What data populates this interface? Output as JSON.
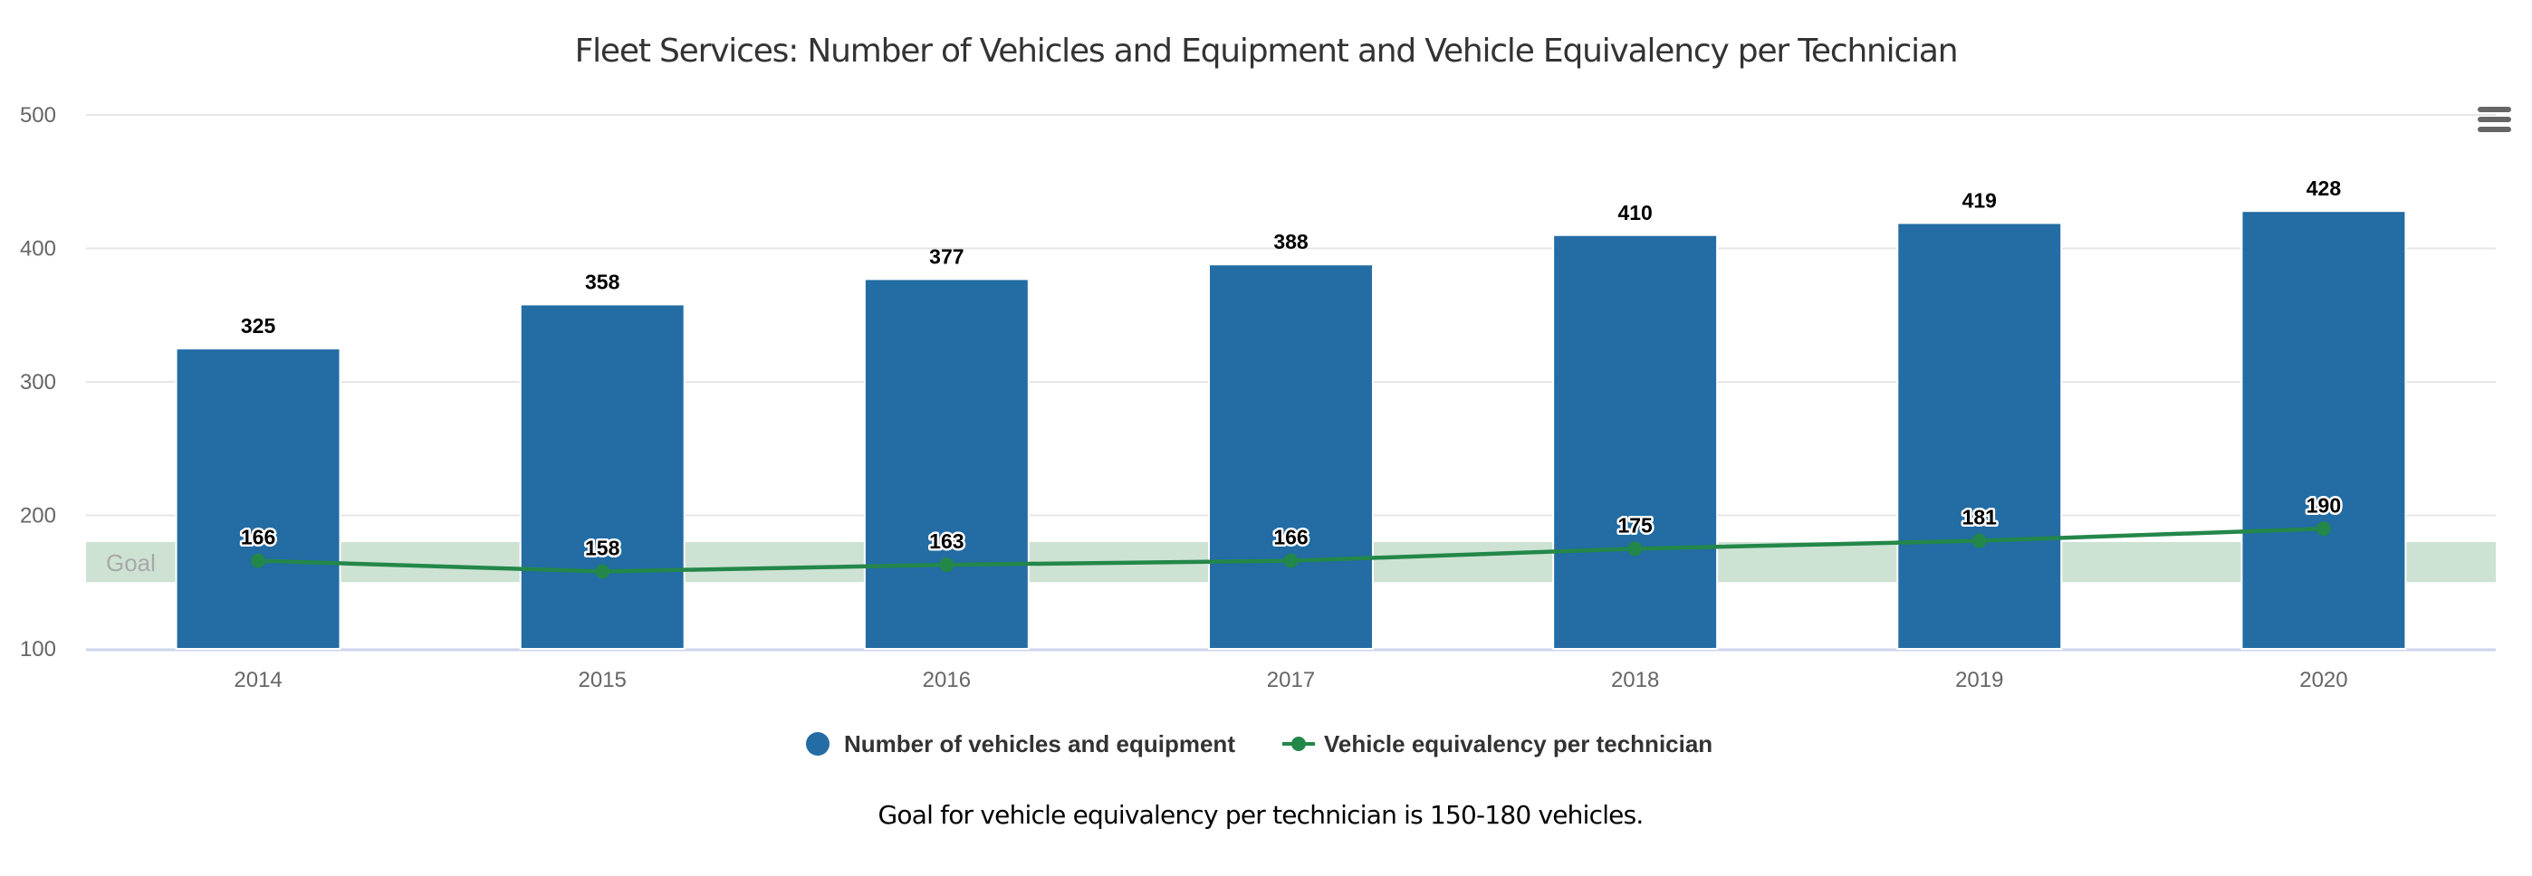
{
  "chart_data": {
    "type": "bar",
    "title": "Fleet Services: Number of Vehicles and Equipment and Vehicle Equivalency per Technician",
    "categories": [
      "2014",
      "2015",
      "2016",
      "2017",
      "2018",
      "2019",
      "2020"
    ],
    "series": [
      {
        "name": "Number of vehicles and equipment",
        "type": "bar",
        "color": "#236ca4",
        "values": [
          325,
          358,
          377,
          388,
          410,
          419,
          428
        ]
      },
      {
        "name": "Vehicle equivalency per technician",
        "type": "line",
        "color": "#23874a",
        "values": [
          166,
          158,
          163,
          166,
          175,
          181,
          190
        ]
      }
    ],
    "yaxis": {
      "min": 100,
      "max": 500,
      "ticks": [
        100,
        200,
        300,
        400,
        500
      ]
    },
    "grid": true,
    "plot_band": {
      "label": "Goal",
      "from": 150,
      "to": 180,
      "color": "#cde2d3"
    },
    "legend": {
      "position": "bottom-center",
      "items": [
        "Number of vehicles and equipment",
        "Vehicle equivalency per technician"
      ]
    },
    "caption": "Goal for vehicle equivalency per technician is 150-180 vehicles.",
    "xlabel": "",
    "ylabel": ""
  },
  "menu": {
    "icon": "hamburger-menu-icon"
  }
}
